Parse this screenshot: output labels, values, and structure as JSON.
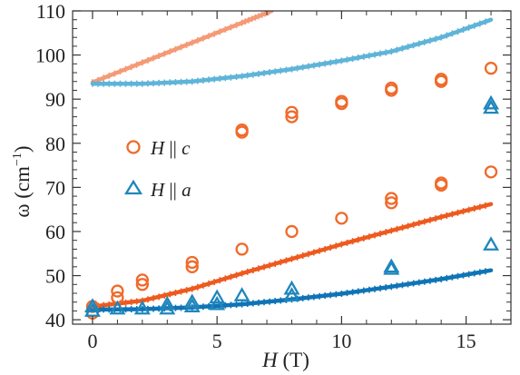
{
  "chart_data": {
    "type": "scatter",
    "title": "",
    "xlabel_italic": "H",
    "xlabel_rest": " (T)",
    "ylabel_main": "ω (cm",
    "ylabel_sup": "−1",
    "ylabel_close": ")",
    "xlim": [
      -0.8,
      16.8
    ],
    "ylim": [
      39,
      110
    ],
    "xticks": [
      0,
      5,
      10,
      15
    ],
    "yticks": [
      40,
      50,
      60,
      70,
      80,
      90,
      100,
      110
    ],
    "legend": {
      "placement": "center-left",
      "items": [
        {
          "italic": "H",
          "sep": " || ",
          "dir": "c",
          "marker": "circle",
          "color": "#f06a2a"
        },
        {
          "italic": "H",
          "sep": " || ",
          "dir": "a",
          "marker": "triangle",
          "color": "#1f86bd"
        }
      ]
    },
    "colors": {
      "orange": "#f06a2a",
      "blue": "#1f86bd",
      "light_orange": "#f59a76",
      "light_blue": "#5fb4d8",
      "dark_orange": "#ee5a1e",
      "dark_blue": "#0f74b5"
    },
    "series": [
      {
        "marker": "circle",
        "color": "orange",
        "points": [
          [
            0,
            41.5
          ],
          [
            0,
            43
          ],
          [
            1,
            45
          ],
          [
            1,
            46.5
          ],
          [
            2,
            48
          ],
          [
            2,
            49
          ],
          [
            4,
            52
          ],
          [
            4,
            53
          ],
          [
            6,
            56
          ],
          [
            6,
            82.5
          ],
          [
            6,
            83
          ],
          [
            8,
            60
          ],
          [
            8,
            86
          ],
          [
            8,
            87
          ],
          [
            10,
            63
          ],
          [
            10,
            89
          ],
          [
            10,
            89.5
          ],
          [
            12,
            66.5
          ],
          [
            12,
            67.5
          ],
          [
            12,
            92
          ],
          [
            12,
            92.5
          ],
          [
            14,
            70.5
          ],
          [
            14,
            71
          ],
          [
            14,
            94
          ],
          [
            14,
            94.5
          ],
          [
            16,
            73.5
          ],
          [
            16,
            97
          ]
        ]
      },
      {
        "marker": "triangle",
        "color": "blue",
        "points": [
          [
            0,
            42
          ],
          [
            0,
            43
          ],
          [
            1,
            42.5
          ],
          [
            2,
            42.5
          ],
          [
            3,
            42.5
          ],
          [
            3,
            43.5
          ],
          [
            4,
            43
          ],
          [
            4,
            44
          ],
          [
            5,
            43.5
          ],
          [
            5,
            45
          ],
          [
            6,
            45.5
          ],
          [
            8,
            45.5
          ],
          [
            8,
            47
          ],
          [
            12,
            51.5
          ],
          [
            12,
            52
          ],
          [
            16,
            57
          ],
          [
            16,
            88
          ],
          [
            16,
            89
          ]
        ]
      }
    ],
    "fit_lines": [
      {
        "color": "light_orange",
        "points": [
          [
            0,
            93.8
          ],
          [
            2,
            98.3
          ],
          [
            4,
            102.8
          ],
          [
            6,
            107.3
          ],
          [
            7.2,
            110
          ]
        ]
      },
      {
        "color": "light_blue",
        "points": [
          [
            0,
            93.5
          ],
          [
            2,
            93.5
          ],
          [
            4,
            94
          ],
          [
            6,
            95.2
          ],
          [
            8,
            96.8
          ],
          [
            10,
            98.7
          ],
          [
            12,
            100.8
          ],
          [
            14,
            104
          ],
          [
            16,
            108
          ]
        ]
      },
      {
        "color": "dark_orange",
        "points": [
          [
            0,
            43
          ],
          [
            2,
            44.3
          ],
          [
            4,
            47
          ],
          [
            6,
            50.5
          ],
          [
            8,
            53.8
          ],
          [
            10,
            57.1
          ],
          [
            12,
            60.2
          ],
          [
            14,
            63.3
          ],
          [
            16,
            66.2
          ]
        ]
      },
      {
        "color": "dark_blue",
        "points": [
          [
            0,
            42.3
          ],
          [
            2,
            42.4
          ],
          [
            4,
            42.8
          ],
          [
            6,
            43.5
          ],
          [
            8,
            44.6
          ],
          [
            10,
            45.9
          ],
          [
            12,
            47.5
          ],
          [
            14,
            49.2
          ],
          [
            16,
            51.2
          ]
        ]
      }
    ]
  }
}
